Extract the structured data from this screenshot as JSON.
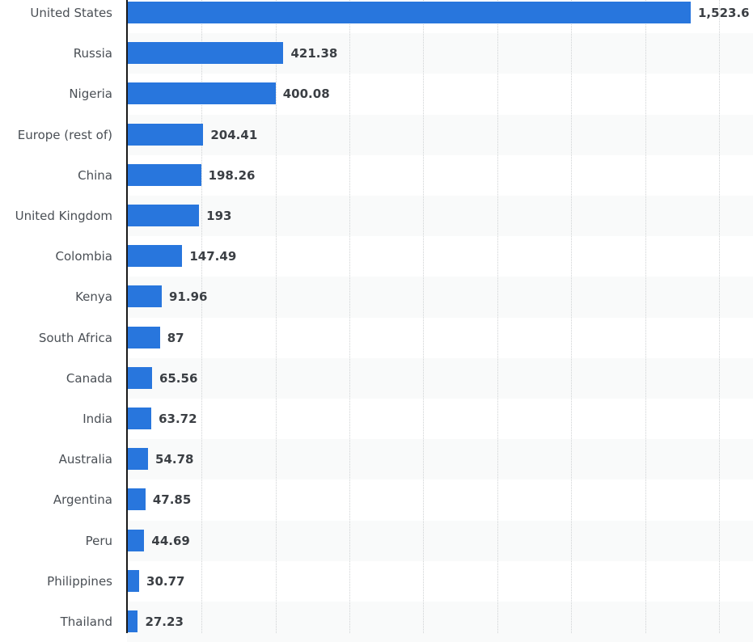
{
  "chart_data": {
    "type": "bar",
    "orientation": "horizontal",
    "title": "",
    "xlabel": "",
    "ylabel": "",
    "categories": [
      "United States",
      "Russia",
      "Nigeria",
      "Europe (rest of)",
      "China",
      "United Kingdom",
      "Colombia",
      "Kenya",
      "South Africa",
      "Canada",
      "India",
      "Australia",
      "Argentina",
      "Peru",
      "Philippines",
      "Thailand"
    ],
    "values": [
      1523.6,
      421.38,
      400.08,
      204.41,
      198.26,
      193,
      147.49,
      91.96,
      87,
      65.56,
      63.72,
      54.78,
      47.85,
      44.69,
      30.77,
      27.23
    ],
    "value_labels": [
      "1,523.6",
      "421.38",
      "400.08",
      "204.41",
      "198.26",
      "193",
      "147.49",
      "91.96",
      "87",
      "65.56",
      "63.72",
      "54.78",
      "47.85",
      "44.69",
      "30.77",
      "27.23"
    ],
    "xlim": [
      0,
      1700
    ],
    "grid_ticks": [
      200,
      400,
      600,
      800,
      1000,
      1200,
      1400,
      1600
    ],
    "grid": true,
    "legend": false,
    "bar_color": "#2876dd"
  }
}
